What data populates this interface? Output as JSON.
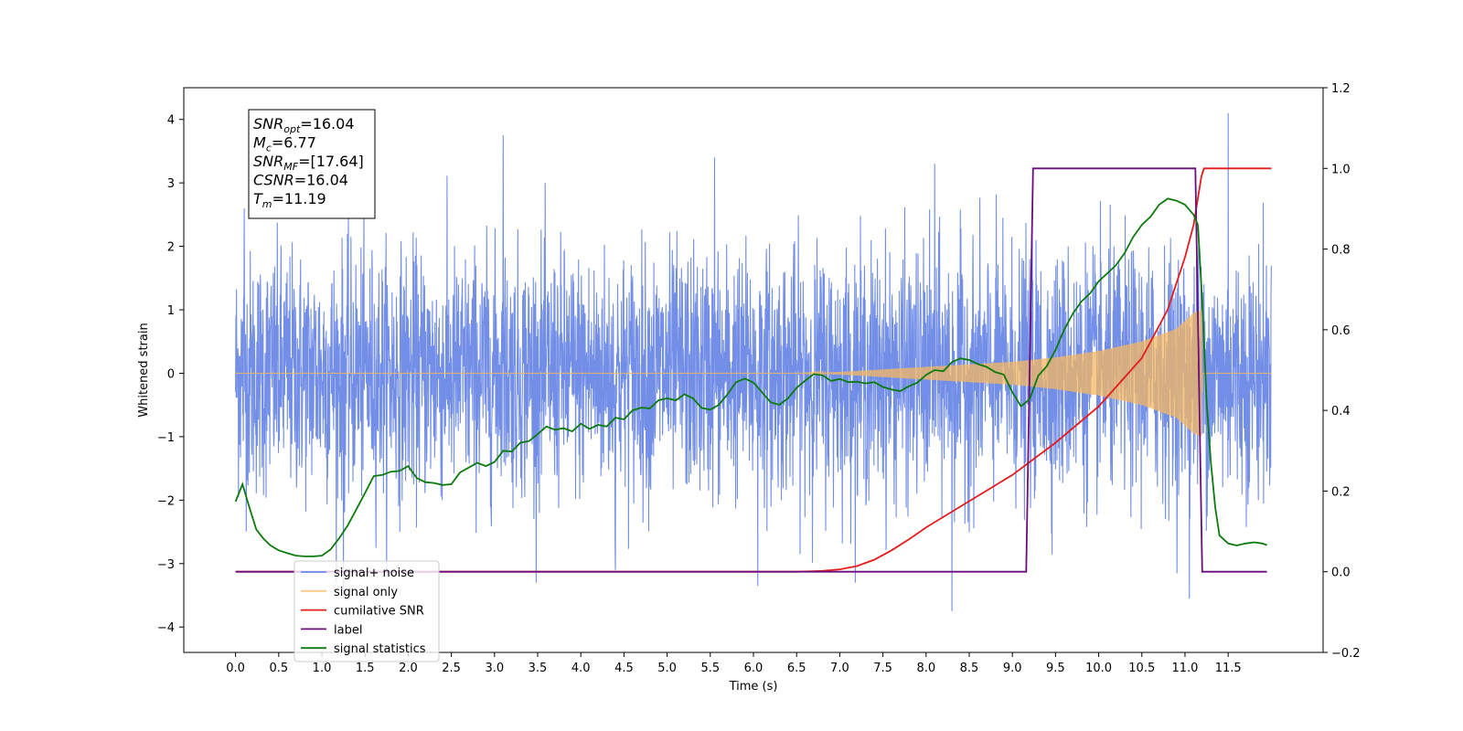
{
  "chart_data": {
    "type": "line",
    "xlabel": "Time (s)",
    "ylabel": "Whitened strain",
    "xlim": [
      -0.6,
      12.6
    ],
    "ylim": [
      -4.4,
      4.5
    ],
    "ylim_right": [
      -0.2,
      1.2
    ],
    "x_ticks": [
      "0.0",
      "0.5",
      "1.0",
      "1.5",
      "2.0",
      "2.5",
      "3.0",
      "3.5",
      "4.0",
      "4.5",
      "5.0",
      "5.5",
      "6.0",
      "6.5",
      "7.0",
      "7.5",
      "8.0",
      "8.5",
      "9.0",
      "9.5",
      "10.0",
      "10.5",
      "11.0",
      "11.5"
    ],
    "y_ticks": [
      "−4",
      "−3",
      "−2",
      "−1",
      "0",
      "1",
      "2",
      "3",
      "4"
    ],
    "y_ticks_right": [
      "−0.2",
      "0.0",
      "0.2",
      "0.4",
      "0.6",
      "0.8",
      "1.0",
      "1.2"
    ],
    "grid": false,
    "legend_position": "lower-left",
    "annotation": {
      "lines": [
        {
          "base": "SNR",
          "sub": "opt",
          "value": "=16.04"
        },
        {
          "base": "M",
          "sub": "c",
          "value": "=6.77"
        },
        {
          "base": "SNR",
          "sub": "MF",
          "value": "=[17.64]"
        },
        {
          "base": "CSNR",
          "sub": "",
          "value": "=16.04"
        },
        {
          "base": "T",
          "sub": "m",
          "value": "=11.19"
        }
      ]
    },
    "series": [
      {
        "name": "signal+ noise",
        "color": "#6a88e6",
        "axis": "left",
        "kind": "noise",
        "x_range": [
          0.0,
          12.0
        ],
        "std": 1.0,
        "peaks": [
          [
            0.1,
            2.6
          ],
          [
            3.1,
            3.75
          ],
          [
            4.4,
            -3.1
          ],
          [
            5.55,
            3.4
          ],
          [
            6.05,
            -3.35
          ],
          [
            8.3,
            -3.75
          ],
          [
            8.1,
            3.3
          ],
          [
            11.5,
            4.1
          ],
          [
            1.25,
            -3.55
          ],
          [
            11.05,
            -3.55
          ]
        ]
      },
      {
        "name": "signal only",
        "color": "#f5b760",
        "axis": "left",
        "kind": "chirp",
        "x_range": [
          0.0,
          12.0
        ],
        "envelope": [
          [
            0.0,
            0.0
          ],
          [
            6.5,
            0.0
          ],
          [
            7.0,
            0.02
          ],
          [
            8.0,
            0.1
          ],
          [
            9.0,
            0.18
          ],
          [
            9.5,
            0.25
          ],
          [
            10.0,
            0.35
          ],
          [
            10.5,
            0.5
          ],
          [
            10.9,
            0.7
          ],
          [
            11.1,
            0.95
          ],
          [
            11.19,
            1.0
          ],
          [
            11.2,
            0.0
          ],
          [
            12.0,
            0.0
          ]
        ]
      },
      {
        "name": "cumilative SNR",
        "color": "#e51b1b",
        "axis": "right",
        "points": [
          [
            0.0,
            0.0
          ],
          [
            6.5,
            0.0
          ],
          [
            6.8,
            0.002
          ],
          [
            7.0,
            0.006
          ],
          [
            7.2,
            0.014
          ],
          [
            7.4,
            0.03
          ],
          [
            7.6,
            0.053
          ],
          [
            7.8,
            0.08
          ],
          [
            8.0,
            0.11
          ],
          [
            8.5,
            0.175
          ],
          [
            9.0,
            0.24
          ],
          [
            9.5,
            0.32
          ],
          [
            10.0,
            0.41
          ],
          [
            10.5,
            0.53
          ],
          [
            10.8,
            0.65
          ],
          [
            11.0,
            0.78
          ],
          [
            11.1,
            0.86
          ],
          [
            11.19,
            0.98
          ],
          [
            11.22,
            1.0
          ],
          [
            12.0,
            1.0
          ]
        ]
      },
      {
        "name": "label",
        "color": "#6b0d7a",
        "axis": "right",
        "points": [
          [
            0.0,
            0.0
          ],
          [
            9.16,
            0.0
          ],
          [
            9.24,
            1.0
          ],
          [
            11.12,
            1.0
          ],
          [
            11.2,
            0.0
          ],
          [
            11.95,
            0.0
          ]
        ]
      },
      {
        "name": "signal statistics",
        "color": "#0d7a0d",
        "axis": "right",
        "points": [
          [
            0.0,
            0.174
          ],
          [
            0.08,
            0.217
          ],
          [
            0.16,
            0.16
          ],
          [
            0.24,
            0.105
          ],
          [
            0.32,
            0.083
          ],
          [
            0.4,
            0.066
          ],
          [
            0.5,
            0.053
          ],
          [
            0.6,
            0.046
          ],
          [
            0.7,
            0.04
          ],
          [
            0.8,
            0.038
          ],
          [
            0.9,
            0.038
          ],
          [
            1.0,
            0.04
          ],
          [
            1.1,
            0.055
          ],
          [
            1.2,
            0.083
          ],
          [
            1.3,
            0.115
          ],
          [
            1.4,
            0.155
          ],
          [
            1.5,
            0.195
          ],
          [
            1.6,
            0.237
          ],
          [
            1.7,
            0.24
          ],
          [
            1.8,
            0.248
          ],
          [
            1.9,
            0.25
          ],
          [
            2.0,
            0.262
          ],
          [
            2.1,
            0.232
          ],
          [
            2.2,
            0.222
          ],
          [
            2.3,
            0.22
          ],
          [
            2.4,
            0.215
          ],
          [
            2.5,
            0.217
          ],
          [
            2.6,
            0.246
          ],
          [
            2.7,
            0.258
          ],
          [
            2.8,
            0.27
          ],
          [
            2.9,
            0.262
          ],
          [
            3.0,
            0.272
          ],
          [
            3.1,
            0.3
          ],
          [
            3.2,
            0.298
          ],
          [
            3.3,
            0.32
          ],
          [
            3.4,
            0.324
          ],
          [
            3.5,
            0.341
          ],
          [
            3.6,
            0.36
          ],
          [
            3.7,
            0.352
          ],
          [
            3.8,
            0.356
          ],
          [
            3.9,
            0.348
          ],
          [
            4.0,
            0.367
          ],
          [
            4.1,
            0.354
          ],
          [
            4.2,
            0.364
          ],
          [
            4.3,
            0.36
          ],
          [
            4.4,
            0.382
          ],
          [
            4.5,
            0.378
          ],
          [
            4.6,
            0.4
          ],
          [
            4.7,
            0.407
          ],
          [
            4.8,
            0.405
          ],
          [
            4.9,
            0.425
          ],
          [
            5.0,
            0.43
          ],
          [
            5.1,
            0.425
          ],
          [
            5.2,
            0.44
          ],
          [
            5.3,
            0.43
          ],
          [
            5.4,
            0.406
          ],
          [
            5.5,
            0.402
          ],
          [
            5.6,
            0.414
          ],
          [
            5.7,
            0.44
          ],
          [
            5.8,
            0.47
          ],
          [
            5.9,
            0.479
          ],
          [
            6.0,
            0.469
          ],
          [
            6.1,
            0.445
          ],
          [
            6.2,
            0.42
          ],
          [
            6.3,
            0.414
          ],
          [
            6.4,
            0.43
          ],
          [
            6.5,
            0.456
          ],
          [
            6.6,
            0.474
          ],
          [
            6.7,
            0.49
          ],
          [
            6.8,
            0.487
          ],
          [
            6.9,
            0.473
          ],
          [
            7.0,
            0.478
          ],
          [
            7.1,
            0.47
          ],
          [
            7.2,
            0.471
          ],
          [
            7.3,
            0.467
          ],
          [
            7.4,
            0.47
          ],
          [
            7.5,
            0.458
          ],
          [
            7.6,
            0.452
          ],
          [
            7.7,
            0.448
          ],
          [
            7.8,
            0.46
          ],
          [
            7.9,
            0.469
          ],
          [
            8.0,
            0.488
          ],
          [
            8.1,
            0.5
          ],
          [
            8.2,
            0.497
          ],
          [
            8.3,
            0.52
          ],
          [
            8.4,
            0.529
          ],
          [
            8.5,
            0.525
          ],
          [
            8.6,
            0.515
          ],
          [
            8.7,
            0.508
          ],
          [
            8.8,
            0.495
          ],
          [
            8.9,
            0.489
          ],
          [
            9.0,
            0.445
          ],
          [
            9.1,
            0.41
          ],
          [
            9.2,
            0.428
          ],
          [
            9.3,
            0.486
          ],
          [
            9.4,
            0.51
          ],
          [
            9.5,
            0.55
          ],
          [
            9.6,
            0.6
          ],
          [
            9.7,
            0.64
          ],
          [
            9.8,
            0.67
          ],
          [
            9.9,
            0.69
          ],
          [
            10.0,
            0.72
          ],
          [
            10.1,
            0.74
          ],
          [
            10.2,
            0.76
          ],
          [
            10.3,
            0.79
          ],
          [
            10.4,
            0.83
          ],
          [
            10.5,
            0.86
          ],
          [
            10.6,
            0.88
          ],
          [
            10.7,
            0.91
          ],
          [
            10.8,
            0.925
          ],
          [
            10.9,
            0.92
          ],
          [
            11.0,
            0.91
          ],
          [
            11.1,
            0.885
          ],
          [
            11.15,
            0.86
          ],
          [
            11.2,
            0.67
          ],
          [
            11.25,
            0.42
          ],
          [
            11.3,
            0.27
          ],
          [
            11.35,
            0.16
          ],
          [
            11.4,
            0.09
          ],
          [
            11.5,
            0.07
          ],
          [
            11.6,
            0.065
          ],
          [
            11.7,
            0.07
          ],
          [
            11.8,
            0.073
          ],
          [
            11.9,
            0.07
          ],
          [
            11.95,
            0.066
          ]
        ]
      }
    ]
  }
}
